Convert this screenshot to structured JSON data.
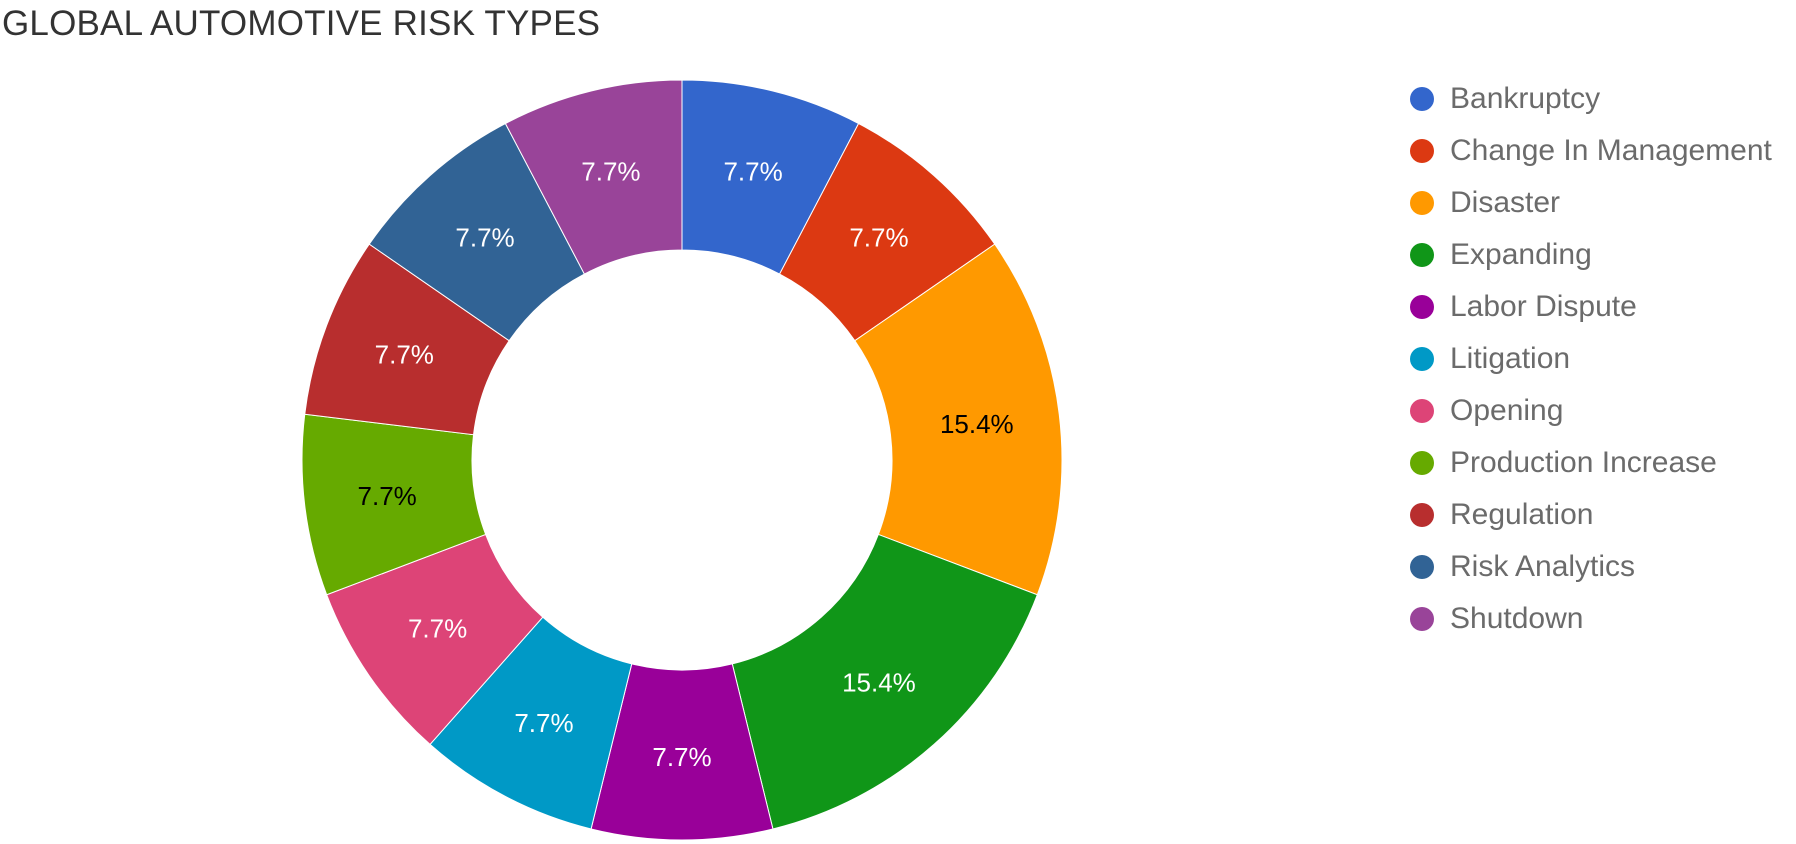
{
  "chart_data": {
    "type": "pie",
    "donut": true,
    "title": "GLOBAL AUTOMOTIVE RISK TYPES",
    "legend_position": "right",
    "slice_order": [
      "Bankruptcy",
      "Change In Management",
      "Disaster",
      "Expanding",
      "Labor Dispute",
      "Litigation",
      "Opening",
      "Production Increase",
      "Regulation",
      "Risk Analytics",
      "Shutdown"
    ],
    "slices": [
      {
        "label": "Bankruptcy",
        "value": 1,
        "percent_label": "7.7%",
        "color": "#3366cc",
        "label_color": "#ffffff"
      },
      {
        "label": "Change In Management",
        "value": 1,
        "percent_label": "7.7%",
        "color": "#dc3912",
        "label_color": "#ffffff"
      },
      {
        "label": "Disaster",
        "value": 2,
        "percent_label": "15.4%",
        "color": "#ff9900",
        "label_color": "#000000"
      },
      {
        "label": "Expanding",
        "value": 2,
        "percent_label": "15.4%",
        "color": "#109618",
        "label_color": "#ffffff"
      },
      {
        "label": "Labor Dispute",
        "value": 1,
        "percent_label": "7.7%",
        "color": "#990099",
        "label_color": "#ffffff"
      },
      {
        "label": "Litigation",
        "value": 1,
        "percent_label": "7.7%",
        "color": "#0099c6",
        "label_color": "#ffffff"
      },
      {
        "label": "Opening",
        "value": 1,
        "percent_label": "7.7%",
        "color": "#dd4477",
        "label_color": "#ffffff"
      },
      {
        "label": "Production Increase",
        "value": 1,
        "percent_label": "7.7%",
        "color": "#66aa00",
        "label_color": "#000000"
      },
      {
        "label": "Regulation",
        "value": 1,
        "percent_label": "7.7%",
        "color": "#b82e2e",
        "label_color": "#ffffff"
      },
      {
        "label": "Risk Analytics",
        "value": 1,
        "percent_label": "7.7%",
        "color": "#316395",
        "label_color": "#ffffff"
      },
      {
        "label": "Shutdown",
        "value": 1,
        "percent_label": "7.7%",
        "color": "#994499",
        "label_color": "#ffffff"
      }
    ]
  }
}
